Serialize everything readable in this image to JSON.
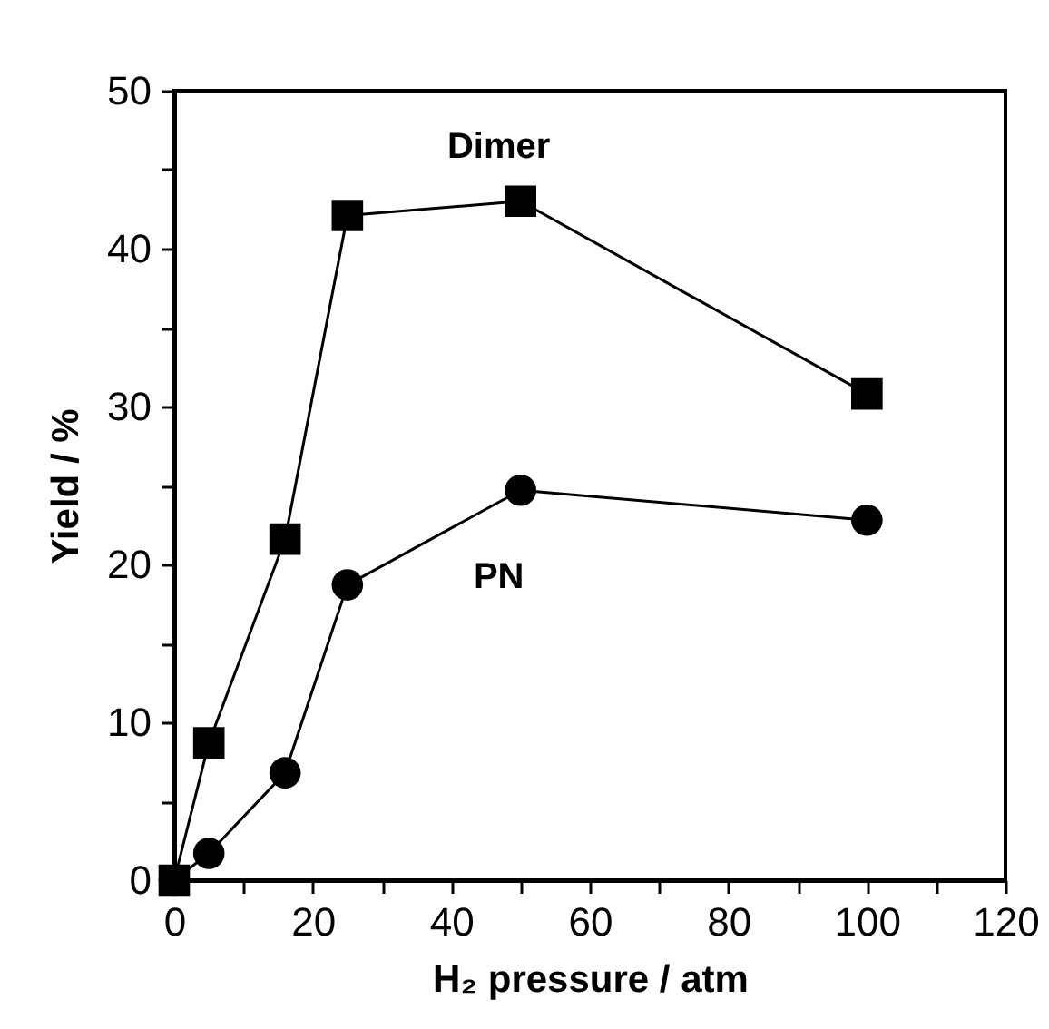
{
  "chart_data": {
    "type": "line",
    "xlabel": "H₂ pressure / atm",
    "ylabel": "Yield / %",
    "x": [
      0,
      5,
      16,
      25,
      50,
      100
    ],
    "series": [
      {
        "name": "Dimer",
        "color": "#000000",
        "marker": "square",
        "values": [
          0,
          8.7,
          21.6,
          42.1,
          43.0,
          30.8
        ]
      },
      {
        "name": "PN",
        "color": "#000000",
        "marker": "circle",
        "values": [
          0,
          1.7,
          6.8,
          18.7,
          24.7,
          22.8
        ]
      }
    ],
    "xlim": [
      0,
      120
    ],
    "ylim": [
      0,
      50
    ],
    "xticks": [
      0,
      {
        "value": 10,
        "label": null
      },
      20,
      {
        "value": 30,
        "label": null
      },
      40,
      {
        "value": 50,
        "label": null
      },
      60,
      {
        "value": 70,
        "label": null
      },
      80,
      {
        "value": 90,
        "label": null
      },
      100,
      {
        "value": 110,
        "label": null
      },
      120
    ],
    "yticks": [
      0,
      {
        "value": 5,
        "label": null
      },
      10,
      {
        "value": 15,
        "label": null
      },
      20,
      {
        "value": 25,
        "label": null
      },
      30,
      {
        "value": 35,
        "label": null
      },
      40,
      {
        "value": 45,
        "label": null
      },
      50
    ],
    "grid": false,
    "legend": false,
    "line_style": "solid"
  }
}
